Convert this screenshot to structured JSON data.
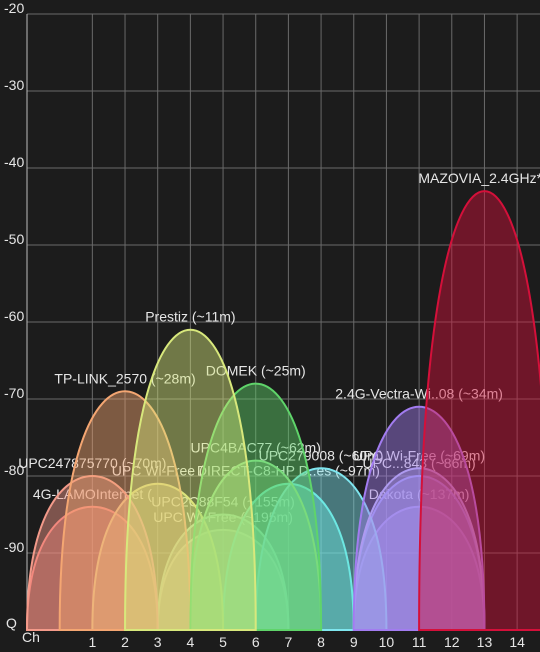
{
  "chart_data": {
    "type": "wifi",
    "x_label": "Ch",
    "y_bottom_label": "Q",
    "xlim": [
      -1,
      14.7
    ],
    "xticks": [
      1,
      2,
      3,
      4,
      5,
      6,
      7,
      8,
      9,
      10,
      11,
      12,
      13,
      14
    ],
    "ylim": [
      -100,
      -20
    ],
    "yticks": [
      -20,
      -30,
      -40,
      -50,
      -60,
      -70,
      -80,
      -90
    ],
    "grid": true,
    "series": [
      {
        "name": "UPC Wi-Free (~195m)",
        "color": "#c6c3a0",
        "channel": 5,
        "signal": -87
      },
      {
        "name": "4G-LAMOInternet (",
        "color": "#f07a73",
        "channel": 1,
        "signal": -84
      },
      {
        "name": "Dakota (~137m)",
        "color": "#a58be6",
        "channel": 11,
        "signal": -84
      },
      {
        "name": "UPC2C88F54 (~155m)",
        "color": "#9fd8b0",
        "channel": 5,
        "signal": -85
      },
      {
        "name": "DIRECT-C8-HP D..es (~97m)",
        "color": "#5fe8d8",
        "channel": 7,
        "signal": -81
      },
      {
        "name": "UPC Wi-Free (",
        "color": "#e0e07a",
        "channel": 3,
        "signal": -81
      },
      {
        "name": "UPC...843 (~86m)",
        "color": "#8f8cf0",
        "channel": 11,
        "signal": -80
      },
      {
        "name": "UPC279008 (~60m)",
        "color": "#7fe6ef",
        "channel": 8,
        "signal": -79
      },
      {
        "name": "UPC Wi-Free (~69m)",
        "color": "#b9b3f0",
        "channel": 11,
        "signal": -79
      },
      {
        "name": "UPC4BAC77 (~62m)",
        "color": "#8fe08a",
        "channel": 6,
        "signal": -78
      },
      {
        "name": "UPC247875770 (~70m)",
        "color": "#f39a8a",
        "channel": 1,
        "signal": -80
      },
      {
        "name": "2.4G-Vectra-Wi..08 (~34m)",
        "color": "#a27cf0",
        "channel": 11,
        "signal": -71
      },
      {
        "name": "TP-LINK_2570 (~28m)",
        "color": "#f4a672",
        "channel": 2,
        "signal": -69
      },
      {
        "name": "DOMEK (~25m)",
        "color": "#5fd46a",
        "channel": 6,
        "signal": -68
      },
      {
        "name": "Prestiz (~11m)",
        "color": "#d8e87c",
        "channel": 4,
        "signal": -61
      },
      {
        "name": "MAZOVIA_2.4GHz* (",
        "color": "#d4103a",
        "channel": 13,
        "signal": -43
      }
    ]
  }
}
